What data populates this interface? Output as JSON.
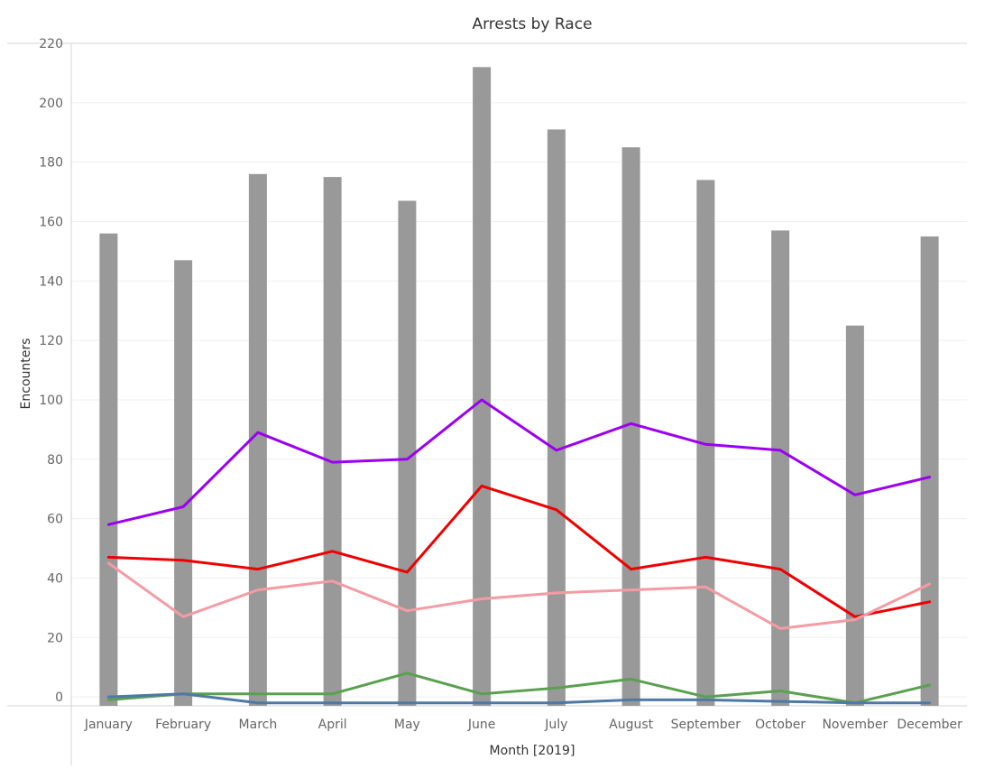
{
  "chart_data": {
    "type": "bar",
    "title": "Arrests by Race",
    "xlabel": "Month [2019]",
    "ylabel": "Encounters",
    "categories": [
      "January",
      "February",
      "March",
      "April",
      "May",
      "June",
      "July",
      "August",
      "September",
      "October",
      "November",
      "December"
    ],
    "ylim": [
      -3,
      220
    ],
    "yticks": [
      0,
      20,
      40,
      60,
      80,
      100,
      120,
      140,
      160,
      180,
      200,
      220
    ],
    "grid": true,
    "legend": "none",
    "bars": {
      "color": "#999999",
      "values": [
        156,
        147,
        176,
        175,
        167,
        212,
        191,
        185,
        174,
        157,
        125,
        155
      ]
    },
    "series": [
      {
        "color": "#9b00f0",
        "values": [
          58,
          64,
          89,
          79,
          80,
          100,
          83,
          92,
          85,
          83,
          68,
          74
        ]
      },
      {
        "color": "#ee0000",
        "values": [
          47,
          46,
          43,
          49,
          42,
          71,
          63,
          43,
          47,
          43,
          27,
          32
        ]
      },
      {
        "color": "#f49ba4",
        "values": [
          45,
          27,
          36,
          39,
          29,
          33,
          35,
          36,
          37,
          23,
          26,
          38
        ]
      },
      {
        "color": "#59a14f",
        "values": [
          -1,
          1,
          1,
          1,
          8,
          1,
          3,
          6,
          0,
          2,
          -2,
          4
        ]
      },
      {
        "color": "#4e79a7",
        "values": [
          0,
          1,
          -2,
          -2,
          -2,
          -2,
          -2,
          -1,
          -1,
          -1.5,
          -2,
          -2
        ]
      }
    ]
  }
}
